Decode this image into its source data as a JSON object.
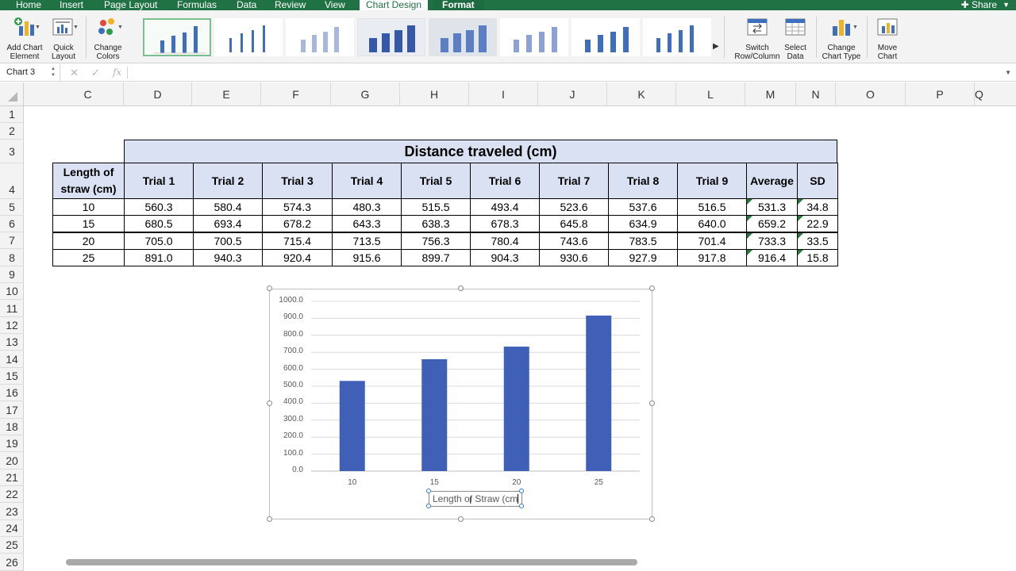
{
  "tabs": {
    "home": "Home",
    "insert": "Insert",
    "page_layout": "Page Layout",
    "formulas": "Formulas",
    "data": "Data",
    "review": "Review",
    "view": "View",
    "chart_design": "Chart Design",
    "format": "Format",
    "active": "Chart Design"
  },
  "share_label": "Share",
  "ribbon": {
    "add_chart_element": [
      "Add Chart",
      "Element"
    ],
    "quick_layout": [
      "Quick",
      "Layout"
    ],
    "change_colors": [
      "Change",
      "Colors"
    ],
    "switch_row_column": [
      "Switch",
      "Row/Column"
    ],
    "select_data": [
      "Select",
      "Data"
    ],
    "change_chart_type": [
      "Change",
      "Chart Type"
    ],
    "move_chart": [
      "Move",
      "Chart"
    ],
    "style_gallery_count": 8,
    "selected_style_index": 0
  },
  "formula_bar": {
    "name_box": "Chart 3",
    "fx_label": "fx",
    "content": ""
  },
  "columns": [
    "C",
    "D",
    "E",
    "F",
    "G",
    "H",
    "I",
    "J",
    "K",
    "L",
    "M",
    "N",
    "O",
    "P",
    "Q"
  ],
  "rows": [
    "1",
    "2",
    "3",
    "4",
    "5",
    "6",
    "7",
    "8",
    "9",
    "10",
    "11",
    "12",
    "13",
    "14",
    "15",
    "16",
    "17",
    "18",
    "19",
    "20",
    "21",
    "22",
    "23",
    "24",
    "25",
    "26"
  ],
  "table": {
    "title": "Distance traveled (cm)",
    "length_header": [
      "Length of",
      "straw (cm)"
    ],
    "headers": [
      "Trial 1",
      "Trial 2",
      "Trial 3",
      "Trial 4",
      "Trial 5",
      "Trial 6",
      "Trial 7",
      "Trial 8",
      "Trial 9",
      "Average",
      "SD"
    ],
    "rows": [
      {
        "length": "10",
        "values": [
          "560.3",
          "580.4",
          "574.3",
          "480.3",
          "515.5",
          "493.4",
          "523.6",
          "537.6",
          "516.5",
          "531.3",
          "34.8"
        ]
      },
      {
        "length": "15",
        "values": [
          "680.5",
          "693.4",
          "678.2",
          "643.3",
          "638.3",
          "678.3",
          "645.8",
          "634.9",
          "640.0",
          "659.2",
          "22.9"
        ]
      },
      {
        "length": "20",
        "values": [
          "705.0",
          "700.5",
          "715.4",
          "713.5",
          "756.3",
          "780.4",
          "743.6",
          "783.5",
          "701.4",
          "733.3",
          "33.5"
        ]
      },
      {
        "length": "25",
        "values": [
          "891.0",
          "940.3",
          "920.4",
          "915.6",
          "899.7",
          "904.3",
          "930.6",
          "927.9",
          "917.8",
          "916.4",
          "15.8"
        ]
      }
    ]
  },
  "chart_data": {
    "type": "bar",
    "categories": [
      "10",
      "15",
      "20",
      "25"
    ],
    "values": [
      531.3,
      659.2,
      733.3,
      916.4
    ],
    "y_ticks": [
      "0.0",
      "100.0",
      "200.0",
      "300.0",
      "400.0",
      "500.0",
      "600.0",
      "700.0",
      "800.0",
      "900.0",
      "1000.0"
    ],
    "ylim": [
      0,
      1000
    ],
    "xlabel": "Length of Straw (cm",
    "ylabel": "",
    "title": "",
    "grid": true,
    "bar_color": "#4060b8"
  },
  "colors": {
    "ribbon_green": "#207245",
    "header_fill": "#d9e1f2",
    "bar_fill": "#4060b8",
    "error_flag": "#1e7b3c"
  }
}
